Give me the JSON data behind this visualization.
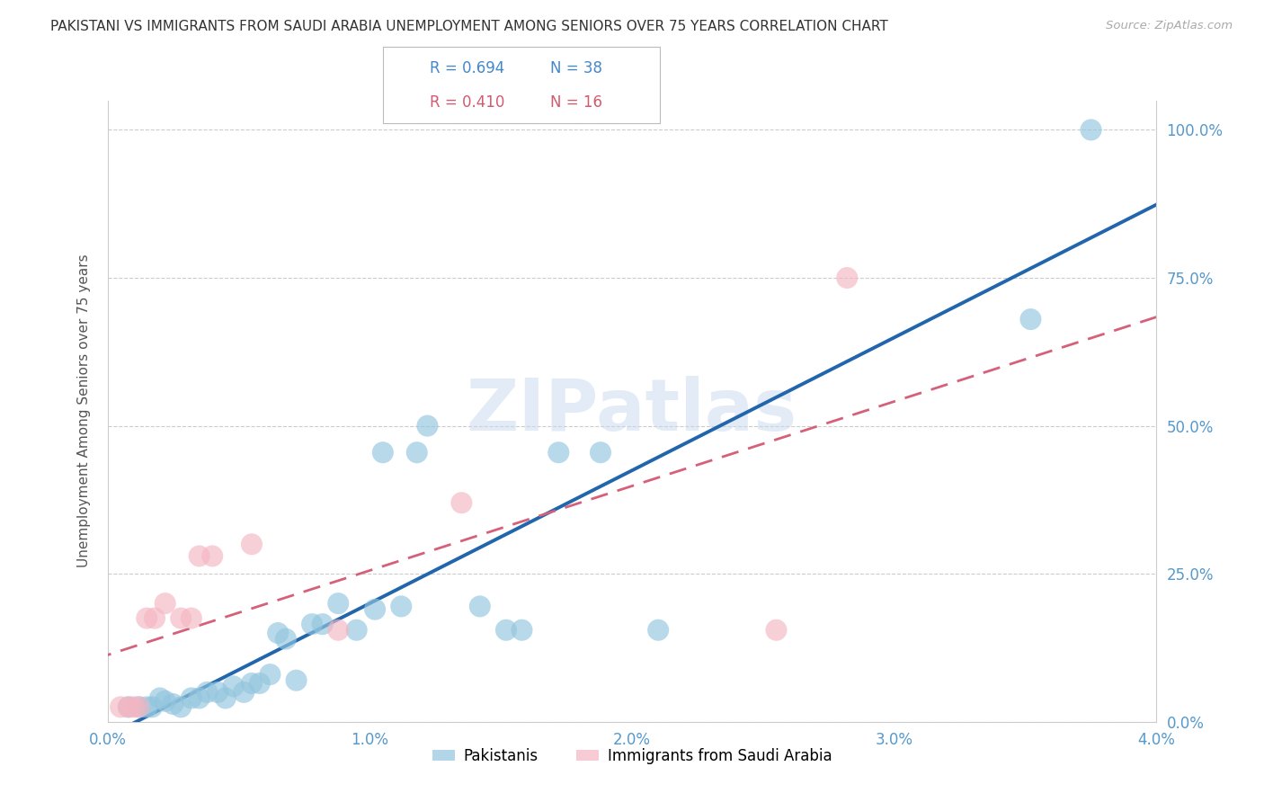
{
  "title": "PAKISTANI VS IMMIGRANTS FROM SAUDI ARABIA UNEMPLOYMENT AMONG SENIORS OVER 75 YEARS CORRELATION CHART",
  "source": "Source: ZipAtlas.com",
  "ylabel": "Unemployment Among Seniors over 75 years",
  "ytick_labels": [
    "0.0%",
    "25.0%",
    "50.0%",
    "75.0%",
    "100.0%"
  ],
  "ytick_values": [
    0.0,
    0.25,
    0.5,
    0.75,
    1.0
  ],
  "xtick_labels": [
    "0.0%",
    "1.0%",
    "2.0%",
    "3.0%",
    "4.0%"
  ],
  "xtick_values": [
    0.0,
    1.0,
    2.0,
    3.0,
    4.0
  ],
  "legend_pakistanis": "Pakistanis",
  "legend_saudi": "Immigrants from Saudi Arabia",
  "R_pakistani": "R = 0.694",
  "N_pakistani": "N = 38",
  "R_saudi": "R = 0.410",
  "N_saudi": "N = 16",
  "color_pakistani_fill": "#92c5de",
  "color_saudi_fill": "#f4b6c2",
  "color_pakistani_line": "#2166ac",
  "color_saudi_line": "#d6607a",
  "color_blue_text": "#4488cc",
  "color_pink_text": "#d45a70",
  "color_axis_blue": "#5599cc",
  "watermark": "ZIPatlas",
  "pak_x": [
    0.08,
    0.12,
    0.15,
    0.17,
    0.2,
    0.22,
    0.25,
    0.28,
    0.32,
    0.35,
    0.38,
    0.42,
    0.45,
    0.48,
    0.52,
    0.55,
    0.58,
    0.62,
    0.65,
    0.68,
    0.72,
    0.78,
    0.82,
    0.88,
    0.95,
    1.02,
    1.05,
    1.12,
    1.18,
    1.22,
    1.42,
    1.52,
    1.58,
    1.72,
    1.88,
    2.1,
    3.52,
    3.75
  ],
  "pak_y": [
    0.025,
    0.025,
    0.025,
    0.025,
    0.04,
    0.035,
    0.03,
    0.025,
    0.04,
    0.04,
    0.05,
    0.05,
    0.04,
    0.06,
    0.05,
    0.065,
    0.065,
    0.08,
    0.15,
    0.14,
    0.07,
    0.165,
    0.165,
    0.2,
    0.155,
    0.19,
    0.455,
    0.195,
    0.455,
    0.5,
    0.195,
    0.155,
    0.155,
    0.455,
    0.455,
    0.155,
    0.68,
    1.0
  ],
  "sau_x": [
    0.05,
    0.08,
    0.1,
    0.12,
    0.15,
    0.18,
    0.22,
    0.28,
    0.32,
    0.35,
    0.4,
    0.55,
    0.88,
    1.35,
    2.55,
    2.82
  ],
  "sau_y": [
    0.025,
    0.025,
    0.025,
    0.025,
    0.175,
    0.175,
    0.2,
    0.175,
    0.175,
    0.28,
    0.28,
    0.3,
    0.155,
    0.37,
    0.155,
    0.75
  ],
  "xmin": 0.0,
  "xmax": 4.0,
  "ymin": 0.0,
  "ymax": 1.05
}
